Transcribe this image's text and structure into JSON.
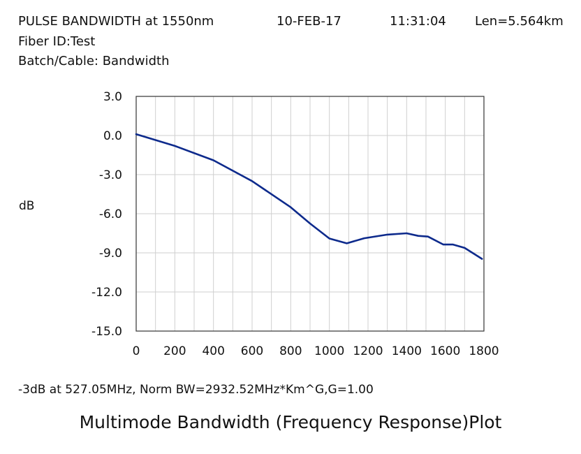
{
  "header": {
    "title": "PULSE BANDWIDTH at 1550nm",
    "date": "10-FEB-17",
    "time": "11:31:04",
    "length": "Len=5.564km",
    "fiber_id": "Fiber ID:Test",
    "batch": "Batch/Cable: Bandwidth"
  },
  "footer": {
    "result": "-3dB at 527.05MHz, Norm BW=2932.52MHz*Km^G,G=1.00",
    "caption": "Multimode Bandwidth (Frequency Response)Plot"
  },
  "chart_data": {
    "type": "line",
    "title": "",
    "xlabel": "",
    "ylabel": "dB",
    "xlim": [
      0,
      1800
    ],
    "ylim": [
      -15,
      3
    ],
    "xticks": [
      0,
      200,
      400,
      600,
      800,
      1000,
      1200,
      1400,
      1600,
      1800
    ],
    "yticks": [
      3,
      0,
      -3,
      -6,
      -9,
      -12,
      -15
    ],
    "ytick_labels": [
      "3.0",
      "0.0",
      "-3.0",
      "-6.0",
      "-9.0",
      "-12.0",
      "-15.0"
    ],
    "grid": true,
    "x_minor_grid_step": 100,
    "line_color": "#0d2a8c",
    "series": [
      {
        "x": [
          0,
          200,
          400,
          600,
          800,
          900,
          1000,
          1090,
          1180,
          1300,
          1400,
          1460,
          1510,
          1590,
          1640,
          1700,
          1790
        ],
        "y": [
          0.1,
          -0.8,
          -1.9,
          -3.5,
          -5.5,
          -6.75,
          -7.9,
          -8.27,
          -7.88,
          -7.6,
          -7.5,
          -7.7,
          -7.75,
          -8.36,
          -8.36,
          -8.62,
          -9.46
        ]
      }
    ]
  }
}
